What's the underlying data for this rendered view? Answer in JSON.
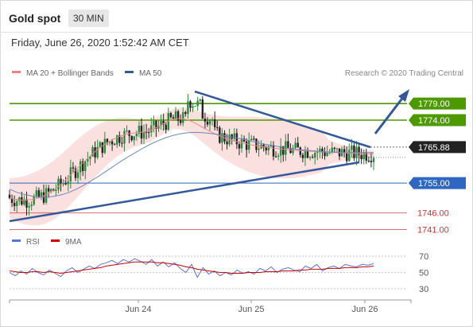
{
  "header": {
    "title": "Gold spot",
    "interval": "30 MIN"
  },
  "timestamp": "Friday, June 26, 2020 1:52:42 AM CET",
  "colors": {
    "bollinger": "#f08080",
    "ma50": "#2f5b9a",
    "resistance": "#4d9900",
    "support": "#2e66c2",
    "lower": "#cc3333",
    "rsi": "#5577dd",
    "rsi_ma": "#cc0000",
    "current": "#222222"
  },
  "legend": {
    "ma20_bb": "MA 20 + Bollinger Bands",
    "ma50": "MA 50",
    "rsi": "RSI",
    "rsi_ma": "9MA"
  },
  "copyright": "Research © 2020 Trading Central",
  "chart_data": [
    {
      "type": "candlestick",
      "title": "",
      "ylim": [
        1738,
        1792
      ],
      "x_ticks": [
        "Jun 24",
        "Jun 25",
        "Jun 26"
      ],
      "series": [
        {
          "name": "MA 20 + Bollinger Bands",
          "values": [
            1750.5,
            1750.0,
            1749.8,
            1750.1,
            1750.6,
            1751.6,
            1753.0,
            1754.8,
            1756.9,
            1759.2,
            1761.4,
            1763.5,
            1765.4,
            1767.0,
            1768.3,
            1769.3,
            1769.9,
            1770.2,
            1770.4,
            1770.9,
            1772.0,
            1773.3,
            1774.3,
            1774.5,
            1774.1,
            1773.1,
            1771.8,
            1770.6,
            1769.5,
            1768.6,
            1767.9,
            1767.3,
            1766.8,
            1766.4,
            1766.0,
            1765.7,
            1765.4,
            1765.2,
            1765.0,
            1764.8,
            1764.7,
            1764.6,
            1764.5,
            1764.3,
            1764.2,
            1764.1,
            1764.0,
            1763.9,
            1763.8,
            1763.8
          ]
        },
        {
          "name": "MA 50",
          "values": [
            1753.2,
            1752.2,
            1751.6,
            1751.1,
            1750.8,
            1750.8,
            1751.0,
            1751.5,
            1752.2,
            1753.2,
            1754.4,
            1755.7,
            1757.1,
            1758.6,
            1760.1,
            1761.6,
            1763.0,
            1764.3,
            1765.6,
            1766.8,
            1767.8,
            1768.7,
            1769.4,
            1769.9,
            1770.2,
            1770.3,
            1770.2,
            1770.0,
            1769.7,
            1769.3,
            1768.9,
            1768.4,
            1767.9,
            1767.4,
            1766.9,
            1766.5,
            1766.1,
            1765.7,
            1765.4,
            1765.1,
            1764.9,
            1764.7,
            1764.5,
            1764.4,
            1764.3,
            1764.2,
            1764.2,
            1764.2,
            1764.2,
            1764.2
          ]
        }
      ],
      "price_levels": [
        {
          "label": "1779.00",
          "value": 1779.0,
          "kind": "resistance"
        },
        {
          "label": "1774.00",
          "value": 1774.0,
          "kind": "resistance"
        },
        {
          "label": "1765.88",
          "value": 1765.88,
          "kind": "current"
        },
        {
          "label": "1755.00",
          "value": 1755.0,
          "kind": "support"
        },
        {
          "label": "1746.00",
          "value": 1746.0,
          "kind": "lower"
        },
        {
          "label": "1741.00",
          "value": 1741.0,
          "kind": "lower"
        }
      ]
    },
    {
      "type": "line",
      "title": "",
      "ylim": [
        20,
        80
      ],
      "y_ticks": [
        "70",
        "50",
        "30"
      ],
      "series": [
        {
          "name": "RSI",
          "values": [
            50,
            46,
            52,
            48,
            55,
            50,
            47,
            53,
            49,
            45,
            52,
            56,
            50,
            54,
            58,
            55,
            60,
            62,
            65,
            61,
            66,
            63,
            67,
            64,
            60,
            66,
            58,
            63,
            57,
            62,
            55,
            50,
            60,
            44,
            56,
            48,
            52,
            46,
            50,
            47,
            53,
            49,
            51,
            48,
            55,
            52,
            57,
            50,
            54,
            56,
            53,
            51,
            58,
            55,
            60,
            52,
            56,
            58,
            55,
            60,
            58,
            57,
            60,
            59,
            61
          ]
        },
        {
          "name": "9MA",
          "values": [
            52,
            51,
            50,
            50,
            51,
            51,
            50,
            51,
            50,
            49,
            50,
            51,
            52,
            53,
            54,
            55,
            56,
            58,
            59,
            60,
            61,
            62,
            63,
            63,
            63,
            63,
            62,
            62,
            61,
            60,
            59,
            57,
            56,
            54,
            53,
            52,
            51,
            50,
            50,
            49,
            49,
            49,
            50,
            50,
            50,
            51,
            51,
            51,
            52,
            52,
            52,
            53,
            53,
            54,
            54,
            54,
            55,
            55,
            55,
            56,
            56,
            56,
            57,
            57,
            58
          ]
        }
      ]
    }
  ]
}
